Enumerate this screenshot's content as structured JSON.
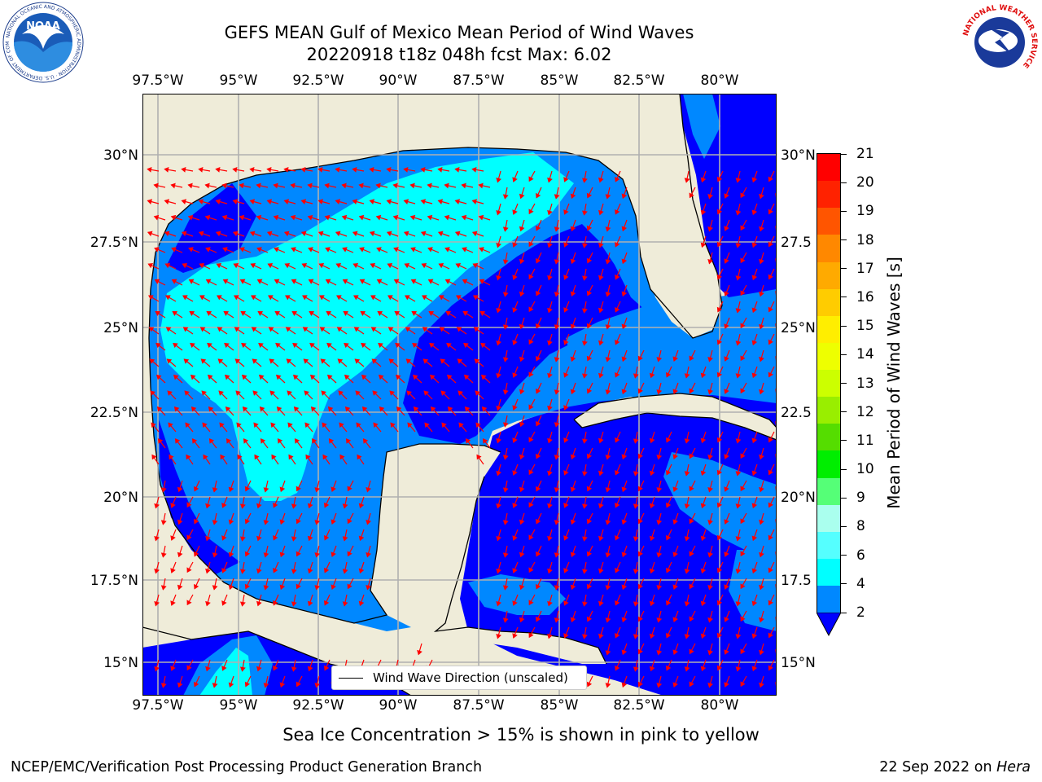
{
  "title": {
    "line1": "GEFS MEAN Gulf of Mexico Mean Period of Wind Waves",
    "line2": "20220918 t18z 048h fcst   Max: 6.02"
  },
  "logos": {
    "noaa_text": "NOAA",
    "noaa_ring": "NATIONAL OCEANIC AND ATMOSPHERIC ADMINISTRATION · U.S. DEPARTMENT OF COMMERCE",
    "nws_ring": "NATIONAL WEATHER SERVICE"
  },
  "map": {
    "lon_ticks": [
      "97.5°W",
      "95°W",
      "92.5°W",
      "90°W",
      "87.5°W",
      "85°W",
      "82.5°W",
      "80°W"
    ],
    "lat_ticks_left": [
      "30°N",
      "27.5°N",
      "25°N",
      "22.5°N",
      "20°N",
      "17.5°N",
      "15°N"
    ],
    "lat_ticks_right": [
      "30°N",
      "27.5",
      "25°N",
      "22.5",
      "20°N",
      "17.5",
      "15°N"
    ],
    "land_color": "#efecd9",
    "arrow_color": "#ff0000",
    "legend_label": "Wind Wave Direction (unscaled)"
  },
  "colorbar": {
    "label": "Mean Period of Wind Waves [s]",
    "ticks": [
      "21",
      "20",
      "19",
      "18",
      "17",
      "16",
      "15",
      "14",
      "13",
      "12",
      "11",
      "10",
      "9",
      "8",
      "6",
      "4",
      "2"
    ],
    "colors": [
      "#ff0000",
      "#ff2200",
      "#ff5500",
      "#ff8800",
      "#ffaa00",
      "#ffcc00",
      "#ffee00",
      "#eeff00",
      "#ccff00",
      "#99ee00",
      "#55dd00",
      "#00ee00",
      "#55ff77",
      "#aaffee",
      "#55ffff",
      "#00ffff",
      "#0088ff"
    ],
    "under_color": "#0000ff"
  },
  "footer": {
    "caption": "Sea Ice Concentration > 15% is shown in pink to yellow",
    "left": "NCEP/EMC/Verification Post Processing Product Generation Branch",
    "date": "22 Sep 2022 on",
    "machine": "Hera"
  }
}
